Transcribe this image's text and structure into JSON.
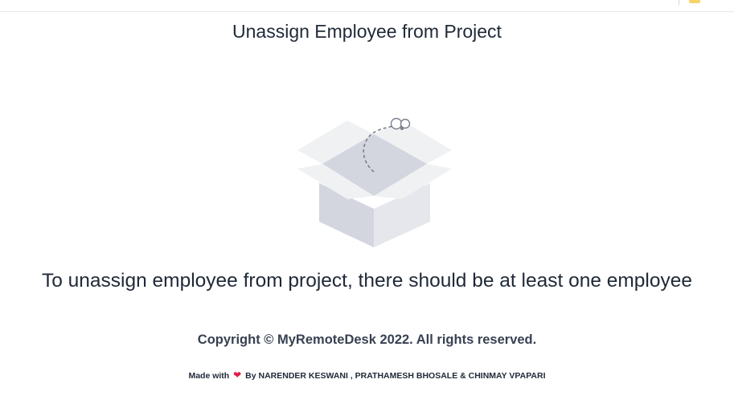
{
  "header": {
    "title": "Unassign Employee from Project"
  },
  "empty_state": {
    "illustration_icon": "empty-box-icon",
    "message": "To unassign employee from project, there should be at least one employee"
  },
  "footer": {
    "copyright": "Copyright © MyRemoteDesk 2022. All rights reserved.",
    "made_with_prefix": "Made with",
    "heart_icon": "heart-icon",
    "made_with_suffix": "By NARENDER KESWANI , PRATHAMESH BHOSALE & CHINMAY VPAPARI"
  },
  "colors": {
    "text": "#1f2937",
    "heart": "#e11d48",
    "box_light": "#f0f1f3",
    "box_mid": "#d3d6df"
  }
}
